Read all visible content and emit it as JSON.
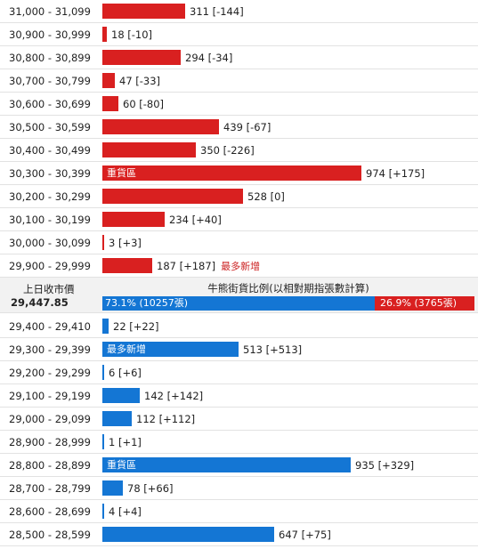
{
  "colors": {
    "bear": "#d92020",
    "bull": "#1476d4"
  },
  "middle": {
    "prev_close_label": "上日收市價",
    "prev_close_value": "29,447.85",
    "ratio_title": "牛熊街貨比例(以相對期指張數計算)",
    "bull_label": "73.1% (10257張)",
    "bear_label": "26.9% (3765張)",
    "bull_fraction": 0.731,
    "bear_fraction": 0.269
  },
  "chart_data": {
    "type": "bar",
    "orientation": "horizontal",
    "bear_rows": [
      {
        "range": "31,000 - 31,099",
        "value": 311,
        "label": "311 [-144]",
        "bar_text": "",
        "tag": ""
      },
      {
        "range": "30,900 - 30,999",
        "value": 18,
        "label": "18 [-10]",
        "bar_text": "",
        "tag": ""
      },
      {
        "range": "30,800 - 30,899",
        "value": 294,
        "label": "294 [-34]",
        "bar_text": "",
        "tag": ""
      },
      {
        "range": "30,700 - 30,799",
        "value": 47,
        "label": "47 [-33]",
        "bar_text": "",
        "tag": ""
      },
      {
        "range": "30,600 - 30,699",
        "value": 60,
        "label": "60 [-80]",
        "bar_text": "",
        "tag": ""
      },
      {
        "range": "30,500 - 30,599",
        "value": 439,
        "label": "439 [-67]",
        "bar_text": "",
        "tag": ""
      },
      {
        "range": "30,400 - 30,499",
        "value": 350,
        "label": "350 [-226]",
        "bar_text": "",
        "tag": ""
      },
      {
        "range": "30,300 - 30,399",
        "value": 974,
        "label": "974 [+175]",
        "bar_text": "重貨區",
        "tag": ""
      },
      {
        "range": "30,200 - 30,299",
        "value": 528,
        "label": "528 [0]",
        "bar_text": "",
        "tag": ""
      },
      {
        "range": "30,100 - 30,199",
        "value": 234,
        "label": "234 [+40]",
        "bar_text": "",
        "tag": ""
      },
      {
        "range": "30,000 - 30,099",
        "value": 3,
        "label": "3 [+3]",
        "bar_text": "",
        "tag": ""
      },
      {
        "range": "29,900 - 29,999",
        "value": 187,
        "label": "187 [+187]",
        "bar_text": "",
        "tag": "最多新增"
      }
    ],
    "bull_rows": [
      {
        "range": "29,400 - 29,410",
        "value": 22,
        "label": "22 [+22]",
        "bar_text": "",
        "tag": ""
      },
      {
        "range": "29,300 - 29,399",
        "value": 513,
        "label": "513 [+513]",
        "bar_text": "最多新增",
        "tag": ""
      },
      {
        "range": "29,200 - 29,299",
        "value": 6,
        "label": "6 [+6]",
        "bar_text": "",
        "tag": ""
      },
      {
        "range": "29,100 - 29,199",
        "value": 142,
        "label": "142 [+142]",
        "bar_text": "",
        "tag": ""
      },
      {
        "range": "29,000 - 29,099",
        "value": 112,
        "label": "112 [+112]",
        "bar_text": "",
        "tag": ""
      },
      {
        "range": "28,900 - 28,999",
        "value": 1,
        "label": "1 [+1]",
        "bar_text": "",
        "tag": ""
      },
      {
        "range": "28,800 - 28,899",
        "value": 935,
        "label": "935 [+329]",
        "bar_text": "重貨區",
        "tag": ""
      },
      {
        "range": "28,700 - 28,799",
        "value": 78,
        "label": "78 [+66]",
        "bar_text": "",
        "tag": ""
      },
      {
        "range": "28,600 - 28,699",
        "value": 4,
        "label": "4 [+4]",
        "bar_text": "",
        "tag": ""
      },
      {
        "range": "28,500 - 28,599",
        "value": 647,
        "label": "647 [+75]",
        "bar_text": "",
        "tag": ""
      }
    ],
    "max_value": 974
  }
}
